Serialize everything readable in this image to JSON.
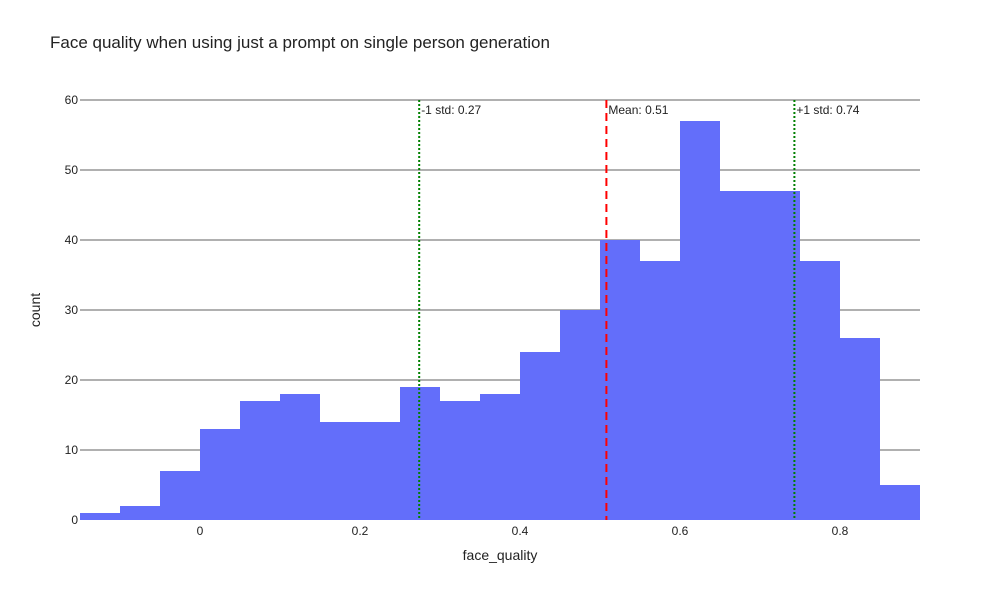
{
  "chart_data": {
    "type": "bar",
    "title": "Face quality when using just a prompt on single person generation",
    "xlabel": "face_quality",
    "ylabel": "count",
    "xlim": [
      -0.15,
      0.9
    ],
    "ylim": [
      0,
      60
    ],
    "bin_width": 0.05,
    "bins": [
      {
        "x0": -0.15,
        "x1": -0.1,
        "count": 1
      },
      {
        "x0": -0.1,
        "x1": -0.05,
        "count": 2
      },
      {
        "x0": -0.05,
        "x1": 0.0,
        "count": 7
      },
      {
        "x0": 0.0,
        "x1": 0.05,
        "count": 13
      },
      {
        "x0": 0.05,
        "x1": 0.1,
        "count": 17
      },
      {
        "x0": 0.1,
        "x1": 0.15,
        "count": 18
      },
      {
        "x0": 0.15,
        "x1": 0.2,
        "count": 14
      },
      {
        "x0": 0.2,
        "x1": 0.25,
        "count": 14
      },
      {
        "x0": 0.25,
        "x1": 0.3,
        "count": 19
      },
      {
        "x0": 0.3,
        "x1": 0.35,
        "count": 17
      },
      {
        "x0": 0.35,
        "x1": 0.4,
        "count": 18
      },
      {
        "x0": 0.4,
        "x1": 0.45,
        "count": 24
      },
      {
        "x0": 0.45,
        "x1": 0.5,
        "count": 30
      },
      {
        "x0": 0.5,
        "x1": 0.55,
        "count": 40
      },
      {
        "x0": 0.55,
        "x1": 0.6,
        "count": 37
      },
      {
        "x0": 0.6,
        "x1": 0.65,
        "count": 57
      },
      {
        "x0": 0.65,
        "x1": 0.7,
        "count": 47
      },
      {
        "x0": 0.7,
        "x1": 0.75,
        "count": 47
      },
      {
        "x0": 0.75,
        "x1": 0.8,
        "count": 37
      },
      {
        "x0": 0.8,
        "x1": 0.85,
        "count": 26
      },
      {
        "x0": 0.85,
        "x1": 0.9,
        "count": 5
      }
    ],
    "x_ticks": [
      {
        "value": 0,
        "label": "0"
      },
      {
        "value": 0.2,
        "label": "0.2"
      },
      {
        "value": 0.4,
        "label": "0.4"
      },
      {
        "value": 0.6,
        "label": "0.6"
      },
      {
        "value": 0.8,
        "label": "0.8"
      }
    ],
    "y_ticks": [
      {
        "value": 0,
        "label": "0"
      },
      {
        "value": 10,
        "label": "10"
      },
      {
        "value": 20,
        "label": "20"
      },
      {
        "value": 30,
        "label": "30"
      },
      {
        "value": 40,
        "label": "40"
      },
      {
        "value": 50,
        "label": "50"
      },
      {
        "value": 60,
        "label": "60"
      }
    ],
    "grid": "horizontal",
    "reference_lines": [
      {
        "name": "minus-one-std",
        "x": 0.274,
        "label": "-1 std: 0.27",
        "color": "#008000",
        "style": "dotted"
      },
      {
        "name": "mean",
        "x": 0.508,
        "label": "Mean: 0.51",
        "color": "#ff0000",
        "style": "dashed"
      },
      {
        "name": "plus-one-std",
        "x": 0.743,
        "label": "+1 std: 0.74",
        "color": "#008000",
        "style": "dotted"
      }
    ],
    "colors": {
      "bar": "#636efa",
      "grid": "#808080",
      "text": "#222222"
    }
  }
}
